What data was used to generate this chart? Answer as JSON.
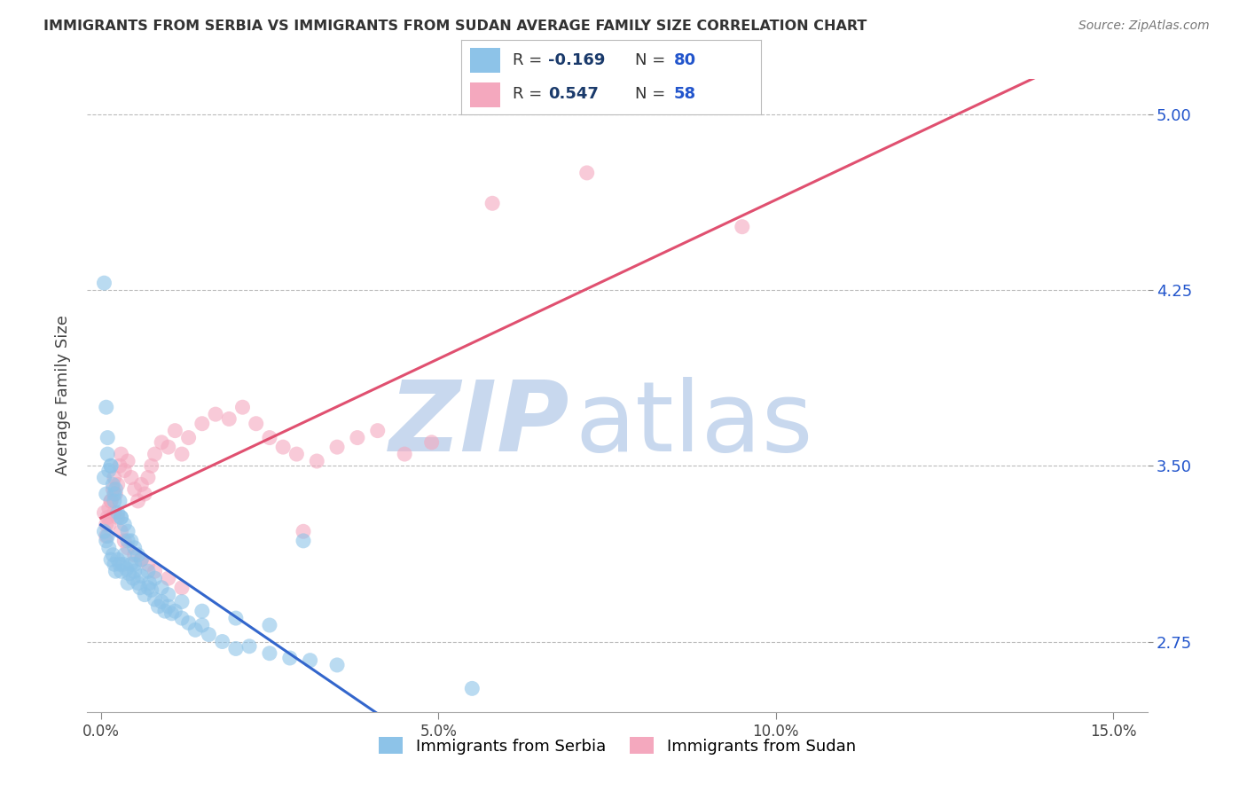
{
  "title": "IMMIGRANTS FROM SERBIA VS IMMIGRANTS FROM SUDAN AVERAGE FAMILY SIZE CORRELATION CHART",
  "source_text": "Source: ZipAtlas.com",
  "ylabel": "Average Family Size",
  "xlabel_ticks": [
    "0.0%",
    "5.0%",
    "10.0%",
    "15.0%"
  ],
  "xlabel_vals": [
    0.0,
    5.0,
    10.0,
    15.0
  ],
  "xlim": [
    -0.2,
    15.5
  ],
  "ylim": [
    2.45,
    5.15
  ],
  "yticks": [
    2.75,
    3.5,
    4.25,
    5.0
  ],
  "serbia_color": "#8DC3E8",
  "sudan_color": "#F4A8BE",
  "serbia_line_color": "#3366CC",
  "sudan_line_color": "#E05070",
  "serbia_R": -0.169,
  "serbia_N": 80,
  "sudan_R": 0.547,
  "sudan_N": 58,
  "serbia_label": "Immigrants from Serbia",
  "sudan_label": "Immigrants from Sudan",
  "background_color": "#FFFFFF",
  "grid_color": "#BBBBBB",
  "legend_text_color": "#222222",
  "legend_R_value_color": "#1a3a6b",
  "legend_N_value_color": "#2255cc",
  "watermark_zip": "ZIP",
  "watermark_atlas": "atlas",
  "watermark_color": "#c8d8ee",
  "serbia_x": [
    0.05,
    0.08,
    0.1,
    0.12,
    0.15,
    0.18,
    0.2,
    0.22,
    0.25,
    0.28,
    0.3,
    0.33,
    0.35,
    0.38,
    0.4,
    0.42,
    0.45,
    0.48,
    0.5,
    0.55,
    0.58,
    0.6,
    0.65,
    0.7,
    0.72,
    0.75,
    0.8,
    0.85,
    0.9,
    0.95,
    1.0,
    1.05,
    1.1,
    1.2,
    1.3,
    1.4,
    1.5,
    1.6,
    1.8,
    2.0,
    2.2,
    2.5,
    2.8,
    3.1,
    3.5,
    0.05,
    0.08,
    0.1,
    0.12,
    0.15,
    0.18,
    0.2,
    0.22,
    0.25,
    0.28,
    0.3,
    0.35,
    0.4,
    0.45,
    0.5,
    0.55,
    0.6,
    0.7,
    0.8,
    0.9,
    1.0,
    1.2,
    1.5,
    2.0,
    2.5,
    0.05,
    0.08,
    0.1,
    0.15,
    0.2,
    0.3,
    0.4,
    0.5,
    5.5,
    3.0
  ],
  "serbia_y": [
    3.22,
    3.18,
    3.2,
    3.15,
    3.1,
    3.12,
    3.08,
    3.05,
    3.1,
    3.08,
    3.05,
    3.08,
    3.12,
    3.06,
    3.0,
    3.04,
    3.08,
    3.02,
    3.05,
    3.0,
    2.98,
    3.03,
    2.95,
    2.98,
    3.0,
    2.97,
    2.93,
    2.9,
    2.92,
    2.88,
    2.9,
    2.87,
    2.88,
    2.85,
    2.83,
    2.8,
    2.82,
    2.78,
    2.75,
    2.72,
    2.73,
    2.7,
    2.68,
    2.67,
    2.65,
    3.45,
    3.38,
    3.55,
    3.48,
    3.5,
    3.42,
    3.35,
    3.4,
    3.3,
    3.35,
    3.28,
    3.25,
    3.22,
    3.18,
    3.15,
    3.12,
    3.1,
    3.05,
    3.02,
    2.98,
    2.95,
    2.92,
    2.88,
    2.85,
    2.82,
    4.28,
    3.75,
    3.62,
    3.5,
    3.38,
    3.28,
    3.18,
    3.08,
    2.55,
    3.18
  ],
  "sudan_x": [
    0.05,
    0.08,
    0.1,
    0.12,
    0.15,
    0.18,
    0.2,
    0.22,
    0.25,
    0.28,
    0.3,
    0.35,
    0.4,
    0.45,
    0.5,
    0.55,
    0.6,
    0.65,
    0.7,
    0.75,
    0.8,
    0.9,
    1.0,
    1.1,
    1.2,
    1.3,
    1.5,
    1.7,
    1.9,
    2.1,
    2.3,
    2.5,
    2.7,
    2.9,
    3.2,
    3.5,
    3.8,
    4.1,
    4.5,
    4.9,
    0.08,
    0.12,
    0.15,
    0.2,
    0.25,
    0.3,
    0.35,
    0.4,
    0.5,
    0.6,
    0.7,
    0.8,
    1.0,
    1.2,
    7.2,
    9.5,
    5.8,
    3.0
  ],
  "sudan_y": [
    3.3,
    3.25,
    3.28,
    3.32,
    3.35,
    3.4,
    3.45,
    3.38,
    3.42,
    3.5,
    3.55,
    3.48,
    3.52,
    3.45,
    3.4,
    3.35,
    3.42,
    3.38,
    3.45,
    3.5,
    3.55,
    3.6,
    3.58,
    3.65,
    3.55,
    3.62,
    3.68,
    3.72,
    3.7,
    3.75,
    3.68,
    3.62,
    3.58,
    3.55,
    3.52,
    3.58,
    3.62,
    3.65,
    3.55,
    3.6,
    3.2,
    3.25,
    3.35,
    3.3,
    3.28,
    3.22,
    3.18,
    3.15,
    3.12,
    3.1,
    3.08,
    3.05,
    3.02,
    2.98,
    4.75,
    4.52,
    4.62,
    3.22
  ]
}
